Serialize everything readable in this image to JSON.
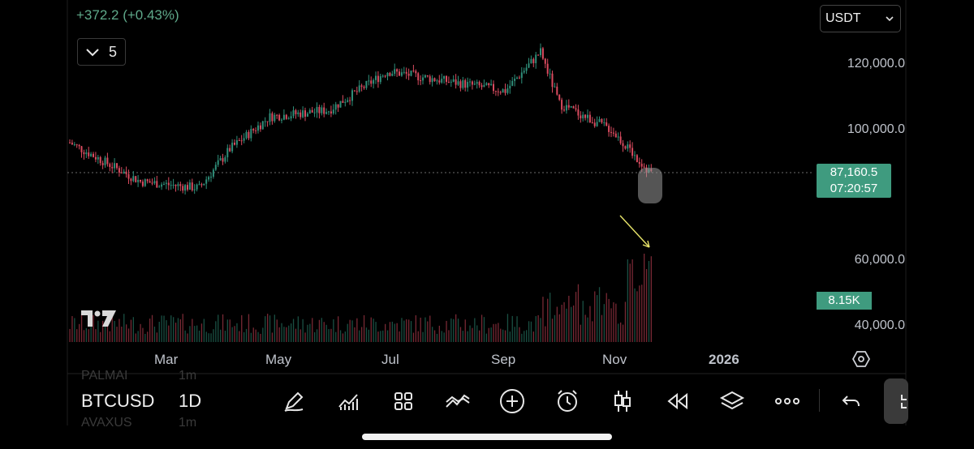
{
  "header": {
    "change_text": "+372.2 (+0.43%)",
    "interval_chip_count": "5",
    "currency": "USDT"
  },
  "price_axis": {
    "labels": [
      "120,000.0",
      "100,000.0",
      "60,000.0",
      "40,000.0"
    ]
  },
  "last_price": {
    "price": "87,160.5",
    "countdown": "07:20:57"
  },
  "volume": {
    "last": "8.15K"
  },
  "time_axis": {
    "labels": [
      "Mar",
      "May",
      "Jul",
      "Sep",
      "Nov",
      "2026"
    ]
  },
  "toolbar": {
    "symbol": "BTCUSD",
    "interval": "1D",
    "ghost_symbol_above": "PALMAI",
    "ghost_interval_above": "1m",
    "ghost_symbol_below": "AVAXUS",
    "ghost_interval_below": "1m"
  },
  "colors": {
    "up": "#2f8f7a",
    "down": "#d94b5f",
    "badge": "#3f9b7f",
    "annotation_arrow": "#e8e46a"
  },
  "icons": [
    "chevron-down-icon",
    "pen-icon",
    "indicators-icon",
    "grid-layout-icon",
    "compare-icon",
    "plus-circle-icon",
    "alarm-icon",
    "candles-icon",
    "replay-icon",
    "layers-icon",
    "more-icon",
    "undo-icon",
    "settings-hex-icon"
  ],
  "chart_data": {
    "type": "candlestick",
    "symbol": "BTCUSD",
    "interval": "1D",
    "x_labels": [
      "Mar",
      "May",
      "Jul",
      "Sep",
      "Nov",
      "2026"
    ],
    "y_ticks": [
      120000,
      100000,
      60000,
      40000
    ],
    "last_price": 87160.5,
    "series_approx_close": [
      [
        "Feb",
        96000
      ],
      [
        "Mar",
        84000
      ],
      [
        "Apr",
        82000
      ],
      [
        "Apr-end",
        94000
      ],
      [
        "May",
        104000
      ],
      [
        "Jun",
        106000
      ],
      [
        "Jul",
        118000
      ],
      [
        "Aug",
        115000
      ],
      [
        "Sep",
        112000
      ],
      [
        "early Oct",
        124000
      ],
      [
        "mid Oct",
        108000
      ],
      [
        "Nov",
        100000
      ],
      [
        "late Nov",
        87160.5
      ]
    ]
  }
}
